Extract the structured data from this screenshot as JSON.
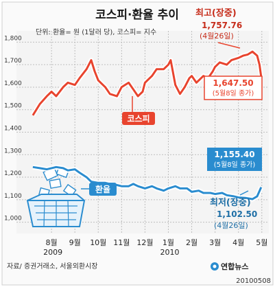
{
  "header": {
    "title": "코스피·환율 추이",
    "unit_note": "단위: 환율= 원 (1달러 당), 코스피= 지수"
  },
  "footer": {
    "source": "자료/ 증권거래소, 서울외환시장",
    "logo_text": "연합뉴스",
    "date_code": "20100508"
  },
  "colors": {
    "kospi": "#e8442e",
    "fx": "#2a8ccf",
    "grid": "#bdbdbd",
    "badge_bg": "#e8442e",
    "fx_box_bg": "#2a8ccf",
    "background": "#ffffff",
    "chart_bg": "#f4f4f4"
  },
  "chart_data": {
    "type": "line",
    "title": "코스피·환율 추이",
    "subtitle": "단위: 환율= 원 (1달러 당), 코스피= 지수",
    "x_axis": {
      "ticks": [
        "8월",
        "9월",
        "10월",
        "11월",
        "12월",
        "1월",
        "2월",
        "3월",
        "4월",
        "5월"
      ],
      "year_labels": [
        {
          "tick": "8월",
          "label": "2009"
        },
        {
          "tick": "1월",
          "label": "2010"
        }
      ]
    },
    "y_axis": {
      "ticks": [
        "1,800",
        "1,700",
        "1,600",
        "1,500",
        "1,400",
        "1,300",
        "1,200",
        "1,100",
        "1,000"
      ],
      "range": [
        950,
        1850
      ],
      "grid": true
    },
    "series": [
      {
        "name": "코스피",
        "color": "#e8442e",
        "x": [
          7.2,
          7.5,
          7.8,
          8.0,
          8.2,
          8.5,
          8.7,
          9.0,
          9.2,
          9.5,
          9.7,
          9.85,
          10.0,
          10.3,
          10.5,
          10.8,
          11.0,
          11.3,
          11.5,
          11.7,
          11.9,
          12.0,
          12.3,
          12.5,
          12.8,
          13.0,
          13.1,
          13.3,
          13.5,
          13.7,
          13.9,
          14.0,
          14.2,
          14.5,
          14.7,
          14.9,
          15.0,
          15.2,
          15.5,
          15.7,
          16.0,
          16.2,
          16.4,
          16.6,
          16.8,
          16.9,
          16.97
        ],
        "y": [
          1475,
          1525,
          1560,
          1580,
          1560,
          1600,
          1620,
          1610,
          1640,
          1680,
          1720,
          1670,
          1630,
          1600,
          1570,
          1560,
          1600,
          1620,
          1590,
          1560,
          1580,
          1620,
          1650,
          1680,
          1680,
          1700,
          1720,
          1610,
          1570,
          1600,
          1640,
          1650,
          1620,
          1650,
          1640,
          1670,
          1690,
          1710,
          1700,
          1720,
          1730,
          1740,
          1745,
          1757.76,
          1740,
          1700,
          1647.5
        ]
      },
      {
        "name": "환율",
        "color": "#2a8ccf",
        "x": [
          7.2,
          7.5,
          7.8,
          8.0,
          8.2,
          8.5,
          8.7,
          9.0,
          9.2,
          9.5,
          9.7,
          10.0,
          10.3,
          10.5,
          10.8,
          11.0,
          11.3,
          11.5,
          11.7,
          12.0,
          12.3,
          12.5,
          12.8,
          13.0,
          13.3,
          13.5,
          13.8,
          14.0,
          14.3,
          14.5,
          14.8,
          15.0,
          15.3,
          15.5,
          15.8,
          16.0,
          16.3,
          16.6,
          16.8,
          16.97
        ],
        "y": [
          1245,
          1240,
          1235,
          1240,
          1245,
          1240,
          1230,
          1235,
          1220,
          1200,
          1180,
          1175,
          1175,
          1170,
          1165,
          1160,
          1160,
          1170,
          1160,
          1150,
          1160,
          1150,
          1140,
          1150,
          1160,
          1150,
          1150,
          1135,
          1140,
          1130,
          1130,
          1125,
          1130,
          1120,
          1115,
          1110,
          1108,
          1102.5,
          1115,
          1155.4
        ]
      }
    ],
    "annotations": [
      {
        "name": "kospi-high",
        "title": "최고(장중)",
        "value": "1,757.76",
        "date": "(4월26일)"
      },
      {
        "name": "kospi-close",
        "value": "1,647.50",
        "date": "(5월8일 종가)"
      },
      {
        "name": "kospi-label",
        "text": "코스피"
      },
      {
        "name": "fx-close",
        "value": "1,155.40",
        "date": "(5월8일 종가)"
      },
      {
        "name": "fx-label",
        "text": "환율"
      },
      {
        "name": "fx-low",
        "title": "최저(장중)",
        "value": "1,102.50",
        "date": "(4월26일)"
      }
    ]
  }
}
